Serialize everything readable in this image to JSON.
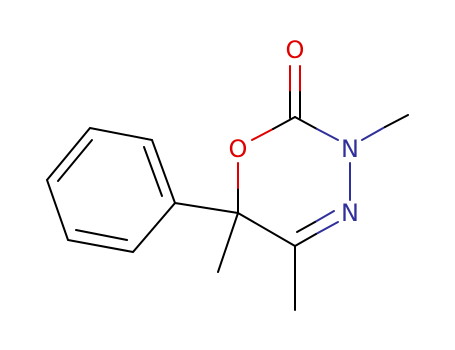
{
  "atoms": {
    "carbonyl_oxygen": "O",
    "ring_oxygen": "O",
    "nitrogen_3": "N",
    "nitrogen_4": "N"
  }
}
